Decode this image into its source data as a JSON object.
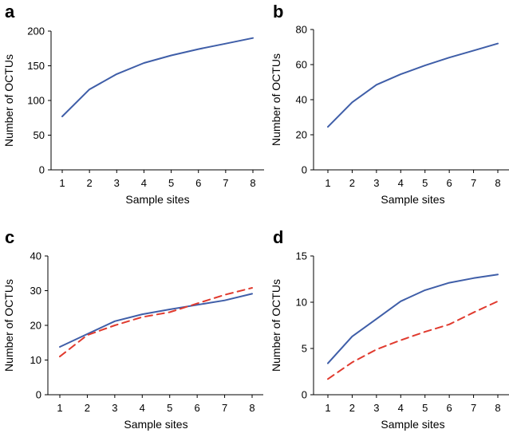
{
  "colors": {
    "series_blue": "#3f5ea8",
    "series_red": "#e03a2e"
  },
  "chart_data": [
    {
      "panel": "a",
      "type": "line",
      "xlabel": "Sample sites",
      "ylabel": "Number of OCTUs",
      "x": [
        1,
        2,
        3,
        4,
        5,
        6,
        7,
        8
      ],
      "xticks": [
        "1",
        "2",
        "3",
        "4",
        "5",
        "6",
        "7",
        "8"
      ],
      "ylim": [
        0,
        200
      ],
      "yticks": [
        "0",
        "50",
        "100",
        "150",
        "200"
      ],
      "series": [
        {
          "style": "solid",
          "color": "#3f5ea8",
          "values": [
            77,
            116,
            138,
            154,
            165,
            174,
            182,
            190
          ]
        }
      ]
    },
    {
      "panel": "b",
      "type": "line",
      "xlabel": "Sample sites",
      "ylabel": "Number of OCTUs",
      "x": [
        1,
        2,
        3,
        4,
        5,
        6,
        7,
        8
      ],
      "xticks": [
        "1",
        "2",
        "3",
        "4",
        "5",
        "6",
        "7",
        "8"
      ],
      "ylim": [
        0,
        80
      ],
      "yticks": [
        "0",
        "20",
        "40",
        "60",
        "80"
      ],
      "series": [
        {
          "style": "solid",
          "color": "#3f5ea8",
          "values": [
            24.5,
            38.5,
            48.5,
            54.5,
            59.5,
            64,
            68,
            72
          ]
        }
      ]
    },
    {
      "panel": "c",
      "type": "line",
      "xlabel": "Sample sites",
      "ylabel": "Number of OCTUs",
      "x": [
        1,
        2,
        3,
        4,
        5,
        6,
        7,
        8
      ],
      "xticks": [
        "1",
        "2",
        "3",
        "4",
        "5",
        "6",
        "7",
        "8"
      ],
      "ylim": [
        0,
        40
      ],
      "yticks": [
        "0",
        "10",
        "20",
        "30",
        "40"
      ],
      "series": [
        {
          "style": "solid",
          "color": "#3f5ea8",
          "values": [
            13.8,
            17.5,
            21.2,
            23.2,
            24.6,
            25.9,
            27.2,
            29.1
          ]
        },
        {
          "style": "dashed",
          "color": "#e03a2e",
          "values": [
            11.0,
            17.2,
            20.0,
            22.4,
            23.8,
            26.3,
            28.8,
            30.8
          ]
        }
      ]
    },
    {
      "panel": "d",
      "type": "line",
      "xlabel": "Sample sites",
      "ylabel": "Number of OCTUs",
      "x": [
        1,
        2,
        3,
        4,
        5,
        6,
        7,
        8
      ],
      "xticks": [
        "1",
        "2",
        "3",
        "4",
        "5",
        "6",
        "7",
        "8"
      ],
      "ylim": [
        0,
        15
      ],
      "yticks": [
        "0",
        "5",
        "10",
        "15"
      ],
      "series": [
        {
          "style": "solid",
          "color": "#3f5ea8",
          "values": [
            3.4,
            6.3,
            8.2,
            10.1,
            11.3,
            12.1,
            12.6,
            13.0
          ]
        },
        {
          "style": "dashed",
          "color": "#e03a2e",
          "values": [
            1.7,
            3.5,
            4.9,
            5.9,
            6.8,
            7.6,
            8.9,
            10.1
          ]
        }
      ]
    }
  ]
}
